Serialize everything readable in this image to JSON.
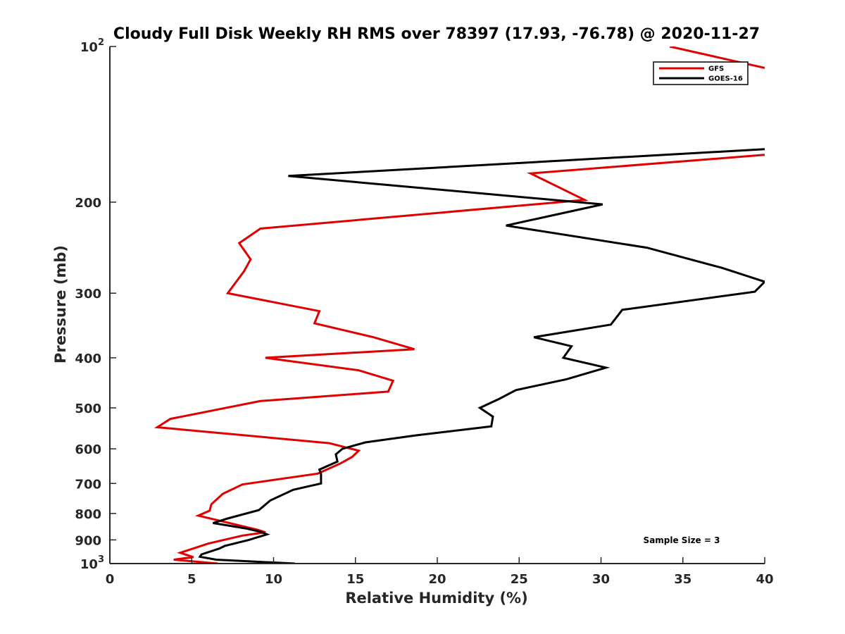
{
  "chart_data": {
    "type": "line",
    "title": "Cloudy Full Disk Weekly RH RMS over 78397 (17.93, -76.78) @ 2020-11-27",
    "xlabel": "Relative Humidity (%)",
    "ylabel": "Pressure (mb)",
    "xlim": [
      0,
      40
    ],
    "ylim": [
      100,
      1000
    ],
    "yscale": "log",
    "y_reversed": true,
    "x_ticks": [
      "0",
      "5",
      "10",
      "15",
      "20",
      "25",
      "30",
      "35",
      "40"
    ],
    "y_ticks": [
      {
        "value": 100,
        "base": "10",
        "exp": "2"
      },
      {
        "value": 200,
        "base": "200",
        "exp": ""
      },
      {
        "value": 300,
        "base": "300",
        "exp": ""
      },
      {
        "value": 400,
        "base": "400",
        "exp": ""
      },
      {
        "value": 500,
        "base": "500",
        "exp": ""
      },
      {
        "value": 600,
        "base": "600",
        "exp": ""
      },
      {
        "value": 700,
        "base": "700",
        "exp": ""
      },
      {
        "value": 800,
        "base": "800",
        "exp": ""
      },
      {
        "value": 900,
        "base": "900",
        "exp": ""
      },
      {
        "value": 1000,
        "base": "10",
        "exp": "3"
      }
    ],
    "legend_position": "top-right",
    "annotation": "Sample Size = 3",
    "series": [
      {
        "name": "GFS",
        "color": "#e00000",
        "points": [
          [
            34.2,
            100
          ],
          [
            40,
            110
          ],
          null,
          [
            40,
            162
          ],
          [
            25.7,
            176
          ],
          [
            29.0,
            198
          ],
          [
            9.2,
            225
          ],
          [
            7.9,
            240
          ],
          [
            8.6,
            258
          ],
          [
            8.2,
            272
          ],
          [
            7.2,
            300
          ],
          [
            12.8,
            325
          ],
          [
            12.5,
            343
          ],
          [
            16.1,
            365
          ],
          [
            18.6,
            385
          ],
          [
            9.5,
            400
          ],
          [
            15.2,
            423
          ],
          [
            17.3,
            443
          ],
          [
            17.0,
            465
          ],
          [
            9.2,
            485
          ],
          [
            3.7,
            525
          ],
          [
            2.9,
            545
          ],
          [
            13.4,
            585
          ],
          [
            15.2,
            605
          ],
          [
            14.8,
            622
          ],
          [
            14.1,
            640
          ],
          [
            12.7,
            670
          ],
          [
            8.1,
            703
          ],
          [
            6.9,
            733
          ],
          [
            6.2,
            768
          ],
          [
            6.1,
            790
          ],
          [
            5.4,
            808
          ],
          [
            9.0,
            860
          ],
          [
            9.5,
            870
          ],
          [
            8.1,
            883
          ],
          [
            6.0,
            915
          ],
          [
            4.3,
            953
          ],
          [
            5.1,
            972
          ],
          [
            3.9,
            983
          ],
          [
            6.6,
            1000
          ]
        ]
      },
      {
        "name": "GOES-16",
        "color": "#000000",
        "points": [
          [
            40,
            158
          ],
          [
            10.9,
            178
          ],
          [
            30.1,
            202
          ],
          [
            24.2,
            222
          ],
          [
            32.8,
            245
          ],
          [
            37.4,
            268
          ],
          [
            40,
            285
          ],
          [
            39.4,
            298
          ],
          [
            31.3,
            323
          ],
          [
            30.6,
            345
          ],
          [
            25.9,
            365
          ],
          [
            28.2,
            380
          ],
          [
            27.7,
            400
          ],
          [
            30.3,
            418
          ],
          [
            27.9,
            440
          ],
          [
            24.8,
            462
          ],
          [
            23.8,
            480
          ],
          [
            22.6,
            500
          ],
          [
            23.4,
            520
          ],
          [
            23.3,
            543
          ],
          [
            18.7,
            565
          ],
          [
            15.6,
            583
          ],
          [
            14.2,
            600
          ],
          [
            13.8,
            615
          ],
          [
            13.9,
            635
          ],
          [
            12.8,
            658
          ],
          [
            12.9,
            672
          ],
          [
            12.9,
            700
          ],
          [
            11.2,
            720
          ],
          [
            9.8,
            755
          ],
          [
            9.1,
            788
          ],
          [
            7.2,
            818
          ],
          [
            6.3,
            835
          ],
          [
            8.3,
            855
          ],
          [
            9.2,
            868
          ],
          [
            9.6,
            878
          ],
          [
            8.5,
            900
          ],
          [
            7.0,
            925
          ],
          [
            6.7,
            935
          ],
          [
            5.6,
            960
          ],
          [
            5.5,
            970
          ],
          [
            6.5,
            983
          ],
          [
            11.3,
            1000
          ]
        ]
      }
    ]
  }
}
